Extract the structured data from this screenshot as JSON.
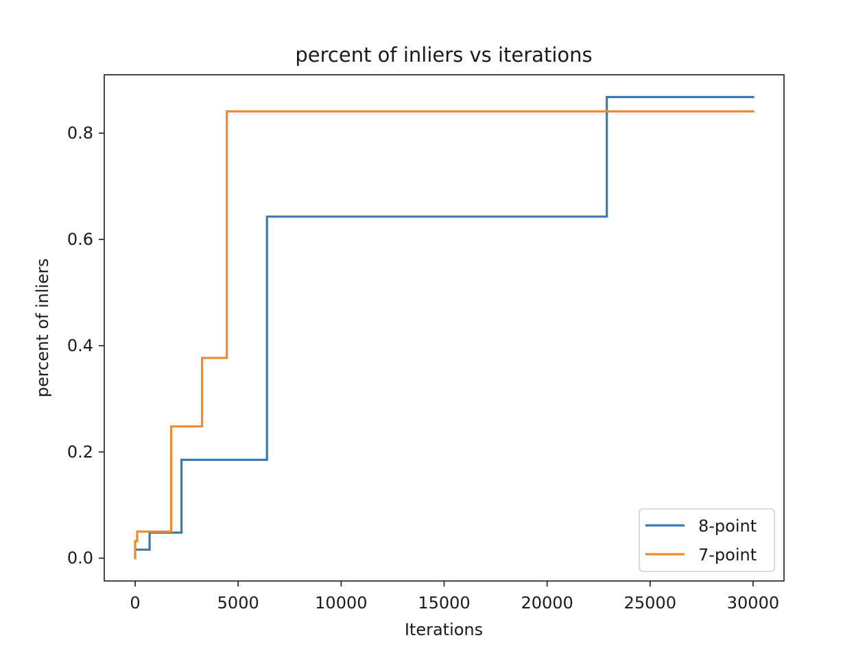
{
  "chart_data": {
    "type": "line",
    "title": "percent of inliers vs iterations",
    "xlabel": "Iterations",
    "ylabel": "percent of inliers",
    "xlim": [
      -1500,
      31500
    ],
    "ylim": [
      -0.043,
      0.91
    ],
    "xticks": [
      0,
      5000,
      10000,
      15000,
      20000,
      25000,
      30000
    ],
    "xtick_labels": [
      "0",
      "5000",
      "10000",
      "15000",
      "20000",
      "25000",
      "30000"
    ],
    "yticks": [
      0.0,
      0.2,
      0.4,
      0.6,
      0.8
    ],
    "ytick_labels": [
      "0.0",
      "0.2",
      "0.4",
      "0.6",
      "0.8"
    ],
    "grid": false,
    "legend_position": "lower-right",
    "series": [
      {
        "name": "8-point",
        "color": "#3c78b4",
        "step": true,
        "points": [
          [
            0,
            0.0
          ],
          [
            0,
            0.016
          ],
          [
            700,
            0.016
          ],
          [
            700,
            0.048
          ],
          [
            2250,
            0.048
          ],
          [
            2250,
            0.185
          ],
          [
            6400,
            0.185
          ],
          [
            6400,
            0.643
          ],
          [
            22900,
            0.643
          ],
          [
            22900,
            0.868
          ],
          [
            30000,
            0.868
          ]
        ]
      },
      {
        "name": "7-point",
        "color": "#f08a2e",
        "step": true,
        "points": [
          [
            0,
            0.0
          ],
          [
            0,
            0.032
          ],
          [
            100,
            0.032
          ],
          [
            100,
            0.05
          ],
          [
            1750,
            0.05
          ],
          [
            1750,
            0.248
          ],
          [
            3250,
            0.248
          ],
          [
            3250,
            0.377
          ],
          [
            4450,
            0.377
          ],
          [
            4450,
            0.841
          ],
          [
            30000,
            0.841
          ]
        ]
      }
    ]
  }
}
